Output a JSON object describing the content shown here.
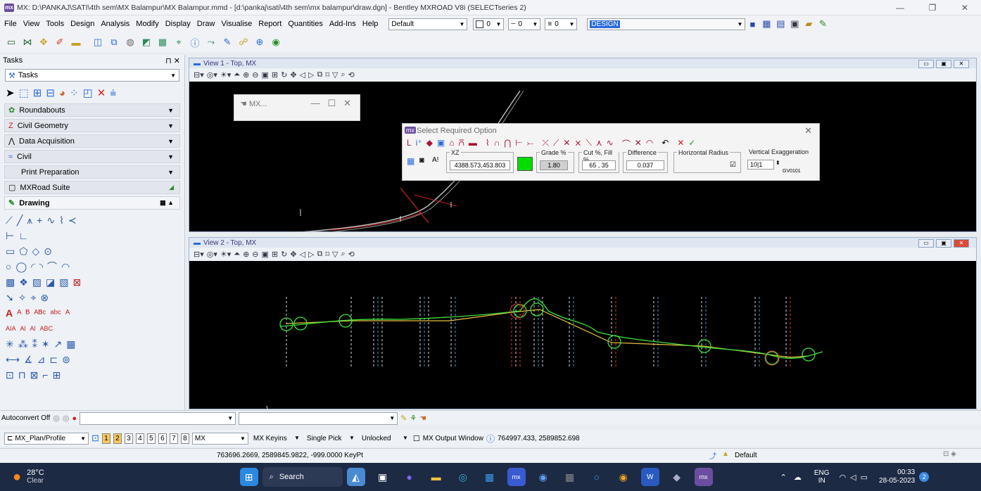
{
  "window": {
    "title": "MX: D:\\PANKAJ\\SATI\\4th sem\\MX Balampur\\MX Balampur.mmd - [d:\\pankaj\\sati\\4th sem\\mx balampur\\draw.dgn] - Bentley MXROAD V8i (SELECTseries 2)",
    "app_icon": "mx"
  },
  "menu": {
    "items": [
      "File",
      "View",
      "Tools",
      "Design",
      "Analysis",
      "Modify",
      "Display",
      "Draw",
      "Visualise",
      "Report",
      "Quantities",
      "Add-Ins",
      "Help"
    ],
    "level_combo": "Default",
    "color_value": "0",
    "style_value": "0",
    "weight_value": "0",
    "design_field": "DESIGN"
  },
  "tasks": {
    "header": "Tasks",
    "selector": "Tasks",
    "groups": [
      "Roundabouts",
      "Civil Geometry",
      "Data Acquisition",
      "Civil",
      "Print Preparation",
      "MXRoad Suite"
    ],
    "drawing": "Drawing"
  },
  "view1": {
    "title": "View 1 - Top, MX"
  },
  "view2": {
    "title": "View 2 - Top, MX"
  },
  "mx_small": {
    "title": "MX..."
  },
  "select_option": {
    "title": "Select Required Option",
    "xz_label": "XZ",
    "xz_value": "4388.573,453.803",
    "grade_label": "Grade %",
    "grade_value": "1.80",
    "cutfill_label": "Cut %, Fill %",
    "cutfill_value": "65 , 35",
    "difference_label": "Difference",
    "difference_value": "0.037",
    "hradius_label": "Horizontal Radius",
    "vexag_label": "Vertical Exaggeration",
    "vexag_value": "10|1",
    "code": "GV0101",
    "swatch_color": "#00dd00"
  },
  "status": {
    "autoconvert": "Autoconvert Off",
    "profile_combo": "MX_Plan/Profile",
    "view_numbers": [
      "1",
      "2",
      "3",
      "4",
      "5",
      "6",
      "7",
      "8"
    ],
    "mx_combo": "MX",
    "keyins": "MX Keyins",
    "pick": "Single Pick",
    "lock": "Unlocked",
    "output_window": "MX Output Window",
    "coords1": "764997.433, 2589852.698",
    "coords2": "763696.2669, 2589845.9822, -999.0000 KeyPt",
    "level": "Default"
  },
  "taskbar": {
    "temp": "28°C",
    "weather": "Clear",
    "search": "Search",
    "lang1": "ENG",
    "lang2": "IN",
    "time": "00:33",
    "date": "28-05-2023",
    "notif": "2"
  }
}
